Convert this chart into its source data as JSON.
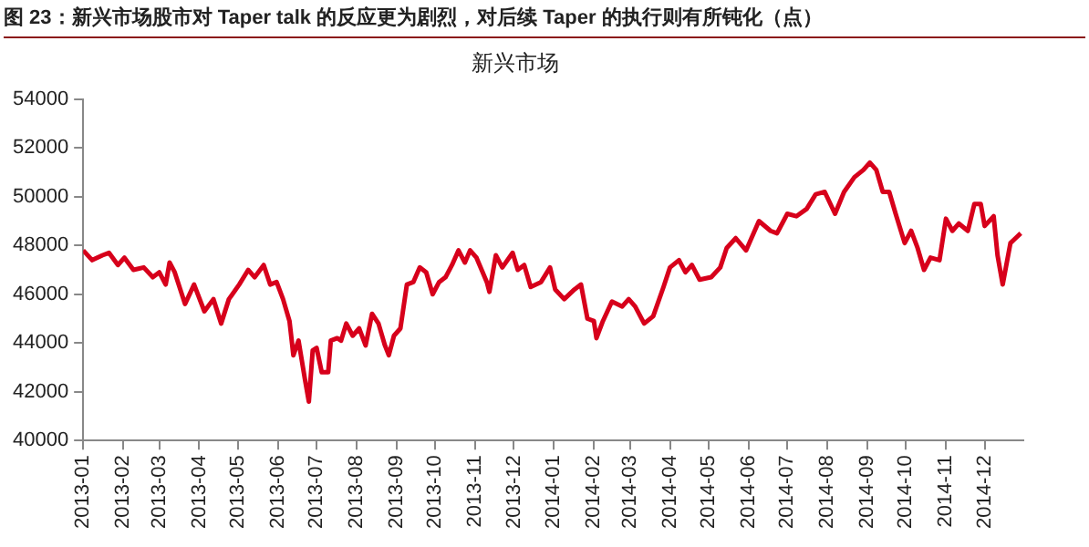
{
  "chart_data": {
    "type": "line",
    "title": "图 23：新兴市场股市对 Taper talk 的反应更为剧烈，对后续 Taper 的执行则有所钝化（点）",
    "subtitle": "新兴市场",
    "x": [
      "2013-01-01",
      "2013-01-08",
      "2013-01-16",
      "2013-01-21",
      "2013-01-28",
      "2013-02-02",
      "2013-02-09",
      "2013-02-17",
      "2013-02-24",
      "2013-03-01",
      "2013-03-06",
      "2013-03-09",
      "2013-03-13",
      "2013-03-21",
      "2013-03-28",
      "2013-04-05",
      "2013-04-12",
      "2013-04-18",
      "2013-04-24",
      "2013-05-02",
      "2013-05-09",
      "2013-05-14",
      "2013-05-21",
      "2013-05-26",
      "2013-05-31",
      "2013-06-05",
      "2013-06-10",
      "2013-06-13",
      "2013-06-17",
      "2013-06-22",
      "2013-06-25",
      "2013-06-28",
      "2013-07-01",
      "2013-07-05",
      "2013-07-10",
      "2013-07-12",
      "2013-07-17",
      "2013-07-20",
      "2013-07-24",
      "2013-07-29",
      "2013-08-03",
      "2013-08-08",
      "2013-08-13",
      "2013-08-18",
      "2013-08-23",
      "2013-08-26",
      "2013-08-30",
      "2013-09-04",
      "2013-09-09",
      "2013-09-14",
      "2013-09-19",
      "2013-09-24",
      "2013-09-29",
      "2013-10-04",
      "2013-10-09",
      "2013-10-14",
      "2013-10-19",
      "2013-10-24",
      "2013-10-28",
      "2013-11-02",
      "2013-11-10",
      "2013-11-12",
      "2013-11-17",
      "2013-11-22",
      "2013-11-30",
      "2013-12-04",
      "2013-12-09",
      "2013-12-14",
      "2013-12-22",
      "2013-12-29",
      "2014-01-02",
      "2014-01-09",
      "2014-01-17",
      "2014-01-22",
      "2014-01-27",
      "2014-02-01",
      "2014-02-03",
      "2014-02-08",
      "2014-02-15",
      "2014-02-23",
      "2014-02-28",
      "2014-03-05",
      "2014-03-12",
      "2014-03-19",
      "2014-03-27",
      "2014-04-01",
      "2014-04-08",
      "2014-04-13",
      "2014-04-18",
      "2014-04-24",
      "2014-05-03",
      "2014-05-10",
      "2014-05-15",
      "2014-05-22",
      "2014-05-30",
      "2014-06-09",
      "2014-06-18",
      "2014-06-23",
      "2014-07-01",
      "2014-07-08",
      "2014-07-16",
      "2014-07-23",
      "2014-07-30",
      "2014-08-07",
      "2014-08-14",
      "2014-08-22",
      "2014-08-29",
      "2014-09-03",
      "2014-09-08",
      "2014-09-13",
      "2014-09-18",
      "2014-09-23",
      "2014-09-30",
      "2014-10-05",
      "2014-10-10",
      "2014-10-15",
      "2014-10-20",
      "2014-10-27",
      "2014-11-01",
      "2014-11-06",
      "2014-11-11",
      "2014-11-18",
      "2014-11-23",
      "2014-11-28",
      "2014-12-01",
      "2014-12-08",
      "2014-12-11",
      "2014-12-15",
      "2014-12-21",
      "2014-12-25",
      "2014-12-29"
    ],
    "series": [
      {
        "color": "#d7001b",
        "values": [
          47800,
          47400,
          47600,
          47700,
          47200,
          47500,
          47000,
          47100,
          46700,
          46900,
          46400,
          47300,
          46900,
          45600,
          46400,
          45300,
          45800,
          44800,
          45800,
          46400,
          47000,
          46700,
          47200,
          46400,
          46500,
          45800,
          44900,
          43500,
          44100,
          42500,
          41600,
          43700,
          43800,
          42800,
          42800,
          44100,
          44200,
          44100,
          44800,
          44300,
          44600,
          43900,
          45200,
          44800,
          43900,
          43500,
          44300,
          44600,
          46400,
          46500,
          47100,
          46900,
          46000,
          46500,
          46700,
          47200,
          47800,
          47300,
          47800,
          47500,
          46500,
          46100,
          47600,
          47100,
          47700,
          47000,
          47200,
          46300,
          46500,
          47100,
          46200,
          45800,
          46200,
          46400,
          45000,
          44900,
          44200,
          44900,
          45700,
          45500,
          45800,
          45500,
          44800,
          45100,
          46300,
          47100,
          47400,
          46900,
          47200,
          46600,
          46700,
          47100,
          47900,
          48300,
          47800,
          49000,
          48600,
          48500,
          49300,
          49200,
          49500,
          50100,
          50200,
          49300,
          50200,
          50800,
          51100,
          51400,
          51100,
          50200,
          50200,
          49300,
          48100,
          48600,
          47900,
          47000,
          47500,
          47400,
          49100,
          48600,
          48900,
          48600,
          49700,
          49700,
          48800,
          49200,
          47600,
          46400,
          48100,
          48300,
          48500
        ]
      }
    ],
    "xlim": [
      "2013-01-01",
      "2014-12-31"
    ],
    "xticks": [
      "2013-01",
      "2013-02",
      "2013-03",
      "2013-04",
      "2013-05",
      "2013-06",
      "2013-07",
      "2013-08",
      "2013-09",
      "2013-10",
      "2013-11",
      "2013-12",
      "2014-01",
      "2014-02",
      "2014-03",
      "2014-04",
      "2014-05",
      "2014-06",
      "2014-07",
      "2014-08",
      "2014-09",
      "2014-10",
      "2014-11",
      "2014-12"
    ],
    "ylim": [
      40000,
      54000
    ],
    "yticks": [
      40000,
      42000,
      44000,
      46000,
      48000,
      50000,
      52000,
      54000
    ],
    "grid": false,
    "legend": false,
    "marker": "none",
    "line_style": "solid"
  }
}
